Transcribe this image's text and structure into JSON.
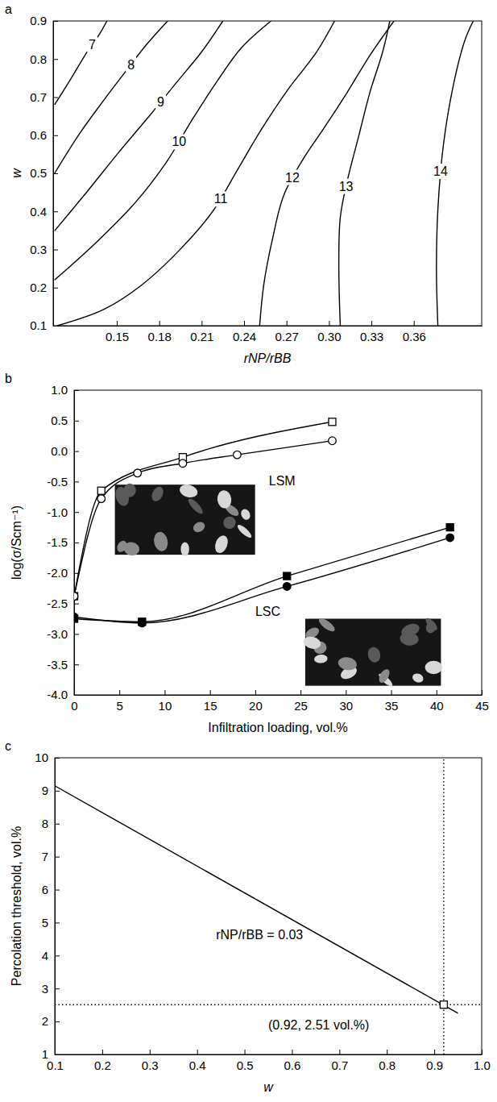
{
  "chart_data": [
    {
      "panel": "a",
      "type": "contour",
      "x_label": "rNP/rBB",
      "y_label": "w",
      "xlim": [
        0.105,
        0.408
      ],
      "ylim": [
        0.1,
        0.9
      ],
      "xticks": [
        0.15,
        0.18,
        0.21,
        0.24,
        0.27,
        {
          "value": 0.3,
          "label": "0.30"
        },
        0.33,
        0.36
      ],
      "yticks": [
        0.1,
        0.2,
        0.3,
        0.4,
        0.5,
        0.6,
        0.7,
        0.8,
        0.9
      ],
      "series": [
        {
          "level": 7,
          "color": "#000000",
          "x": [
            0.106,
            0.118,
            0.129,
            0.138,
            0.143
          ],
          "values": [
            0.68,
            0.751,
            0.819,
            0.867,
            0.9
          ]
        },
        {
          "level": 8,
          "color": "#000000",
          "x": [
            0.106,
            0.124,
            0.141,
            0.157,
            0.171,
            0.186
          ],
          "values": [
            0.5,
            0.606,
            0.693,
            0.771,
            0.838,
            0.9
          ]
        },
        {
          "level": 9,
          "color": "#000000",
          "x": [
            0.106,
            0.129,
            0.152,
            0.174,
            0.193,
            0.21,
            0.225
          ],
          "values": [
            0.349,
            0.452,
            0.558,
            0.655,
            0.742,
            0.819,
            0.9
          ]
        },
        {
          "level": 10,
          "color": "#000000",
          "x": [
            0.106,
            0.135,
            0.163,
            0.185,
            0.204,
            0.221,
            0.238,
            0.259
          ],
          "values": [
            0.22,
            0.317,
            0.423,
            0.529,
            0.645,
            0.742,
            0.829,
            0.9
          ]
        },
        {
          "level": 11,
          "color": "#000000",
          "x": [
            0.108,
            0.141,
            0.168,
            0.196,
            0.218,
            0.235,
            0.252,
            0.271,
            0.291,
            0.304
          ],
          "values": [
            0.1,
            0.143,
            0.208,
            0.305,
            0.401,
            0.507,
            0.614,
            0.72,
            0.817,
            0.9
          ]
        },
        {
          "level": 12,
          "color": "#000000",
          "x": [
            0.251,
            0.254,
            0.26,
            0.268,
            0.282,
            0.296,
            0.313,
            0.329,
            0.346
          ],
          "values": [
            0.1,
            0.21,
            0.326,
            0.442,
            0.539,
            0.616,
            0.713,
            0.81,
            0.9
          ]
        },
        {
          "level": 13,
          "color": "#000000",
          "x": [
            0.308,
            0.307,
            0.308,
            0.313,
            0.321,
            0.329,
            0.338,
            0.343
          ],
          "values": [
            0.1,
            0.249,
            0.384,
            0.481,
            0.597,
            0.713,
            0.819,
            0.9
          ]
        },
        {
          "level": 14,
          "color": "#000000",
          "x": [
            0.377,
            0.376,
            0.377,
            0.381,
            0.388,
            0.396,
            0.402
          ],
          "values": [
            0.1,
            0.249,
            0.403,
            0.577,
            0.732,
            0.848,
            0.9
          ]
        }
      ]
    },
    {
      "panel": "b",
      "type": "line",
      "x_label": "Infiltration loading, vol.%",
      "y_label": "log(σ/Scm⁻¹)",
      "xlim": [
        0,
        45
      ],
      "ylim": [
        -4,
        1
      ],
      "xticks": [
        0,
        5,
        10,
        15,
        20,
        25,
        30,
        35,
        40,
        45
      ],
      "yticks": [
        {
          "value": -4,
          "label": "-4.0"
        },
        -3.5,
        {
          "value": -3,
          "label": "-3.0"
        },
        -2.5,
        {
          "value": -2,
          "label": "-2.0"
        },
        -1.5,
        {
          "value": -1,
          "label": "-1.0"
        },
        -0.5,
        {
          "value": 0,
          "label": "0.0"
        },
        0.5,
        {
          "value": 1,
          "label": "1.0"
        }
      ],
      "series": [
        {
          "color": "#000000",
          "marker": "open-square",
          "line_style": "solid",
          "x": [
            0,
            3,
            12,
            28.5
          ],
          "values": [
            -2.38,
            -0.65,
            -0.1,
            0.48
          ]
        },
        {
          "color": "#000000",
          "marker": "open-circle",
          "line_style": "solid",
          "x": [
            0,
            3,
            7,
            12,
            18,
            28.5
          ],
          "values": [
            -2.38,
            -0.78,
            -0.36,
            -0.2,
            -0.06,
            0.17
          ]
        },
        {
          "color": "#000000",
          "marker": "filled-square",
          "line_style": "solid",
          "x": [
            0,
            7.5,
            23.5,
            41.5
          ],
          "values": [
            -2.75,
            -2.8,
            -2.05,
            -1.25
          ]
        },
        {
          "color": "#000000",
          "marker": "filled-circle",
          "line_style": "solid",
          "x": [
            0,
            7.5,
            23.5,
            41.5
          ],
          "values": [
            -2.72,
            -2.82,
            -2.22,
            -1.42
          ]
        }
      ],
      "annotations": [
        {
          "text": "LSM",
          "x": 21.5,
          "y": -0.5
        },
        {
          "text": "LSC",
          "x": 20,
          "y": -2.65
        }
      ]
    },
    {
      "panel": "c",
      "type": "line",
      "x_label": "w",
      "y_label": "Percolation threshold, vol.%",
      "xlim": [
        0.1,
        1
      ],
      "ylim": [
        1,
        10
      ],
      "xticks": [
        0.1,
        0.2,
        0.3,
        0.4,
        0.5,
        0.6,
        0.7,
        0.8,
        0.9,
        {
          "value": 1,
          "label": "1.0"
        }
      ],
      "yticks": [
        1,
        2,
        3,
        4,
        5,
        6,
        7,
        8,
        9,
        10
      ],
      "series": [
        {
          "color": "#000000",
          "line_style": "solid",
          "x": [
            0.1,
            0.95
          ],
          "values": [
            9.15,
            2.25
          ]
        },
        {
          "color": "#000000",
          "line_style": "dotted",
          "x": [
            0.1,
            1
          ],
          "values": [
            2.51,
            2.51
          ]
        },
        {
          "color": "#000000",
          "line_style": "dotted",
          "x": [
            0.92,
            0.92
          ],
          "values": [
            1,
            10
          ]
        },
        {
          "color": "#000000",
          "type": "scatter",
          "marker": "open-square",
          "x": [
            0.92
          ],
          "values": [
            2.51
          ]
        }
      ],
      "annotations": [
        {
          "text": "rNP/rBB = 0.03",
          "x": 0.44,
          "y": 4.6
        },
        {
          "text": "(0.92, 2.51 vol.%)",
          "x": 0.55,
          "y": 1.85
        }
      ]
    }
  ]
}
